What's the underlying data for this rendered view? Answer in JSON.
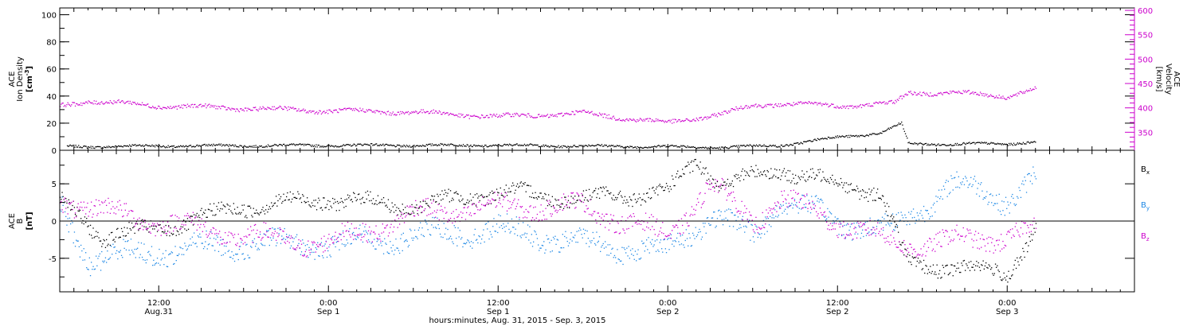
{
  "chart_data": {
    "type": "scatter",
    "time_axis": {
      "range": [
        "2015-08-31T05:00",
        "2015-09-03T09:00"
      ],
      "major_ticks": [
        {
          "t": "2015-08-31T12:00",
          "hour": "12:00",
          "date": "Aug.31"
        },
        {
          "t": "2015-09-01T00:00",
          "hour": "0:00",
          "date": "Sep 1"
        },
        {
          "t": "2015-09-01T12:00",
          "hour": "12:00",
          "date": "Sep 1"
        },
        {
          "t": "2015-09-02T00:00",
          "hour": "0:00",
          "date": "Sep 2"
        },
        {
          "t": "2015-09-02T12:00",
          "hour": "12:00",
          "date": "Sep 2"
        },
        {
          "t": "2015-09-03T00:00",
          "hour": "0:00",
          "date": "Sep 3"
        }
      ],
      "xlabel": "hours:minutes, Aug. 31, 2015 - Sep.  3, 2015"
    },
    "panels": [
      {
        "left_axis": {
          "label_lines": [
            "ACE",
            "Ion Density"
          ],
          "unit_main": "[cm",
          "unit_sup": "-3",
          "unit_end": "]",
          "ylim": [
            0,
            105
          ],
          "ticks": [
            0,
            20,
            40,
            60,
            80,
            100
          ],
          "color": "#000000"
        },
        "right_axis": {
          "label_lines": [
            "ACE",
            "Velocity"
          ],
          "unit": "[km/s]",
          "ylim": [
            313,
            605
          ],
          "ticks": [
            350,
            400,
            450,
            500,
            550,
            600
          ],
          "color": "#cc00cc"
        },
        "series": [
          {
            "key": "density",
            "axis": "left",
            "color": "#000000",
            "noise": 0.8,
            "points": [
              [
                "2015-08-31T05:30",
                3
              ],
              [
                "2015-08-31T12:00",
                3.5
              ],
              [
                "2015-09-01T00:00",
                4
              ],
              [
                "2015-09-01T12:00",
                4
              ],
              [
                "2015-09-02T00:00",
                3
              ],
              [
                "2015-09-02T04:00",
                2.5
              ],
              [
                "2015-09-02T08:00",
                4
              ],
              [
                "2015-09-02T12:00",
                10
              ],
              [
                "2015-09-02T15:00",
                13
              ],
              [
                "2015-09-02T16:30",
                20
              ],
              [
                "2015-09-02T17:00",
                5
              ],
              [
                "2015-09-03T00:00",
                5
              ],
              [
                "2015-09-03T02:00",
                7
              ]
            ]
          },
          {
            "key": "velocity",
            "axis": "right",
            "color": "#cc00cc",
            "noise": 4,
            "points": [
              [
                "2015-08-31T05:00",
                405
              ],
              [
                "2015-08-31T07:00",
                415
              ],
              [
                "2015-08-31T12:00",
                405
              ],
              [
                "2015-08-31T18:00",
                400
              ],
              [
                "2015-09-01T00:00",
                395
              ],
              [
                "2015-09-01T06:00",
                392
              ],
              [
                "2015-09-01T12:00",
                383
              ],
              [
                "2015-09-01T18:00",
                390
              ],
              [
                "2015-09-02T00:00",
                370
              ],
              [
                "2015-09-02T04:00",
                390
              ],
              [
                "2015-09-02T06:00",
                405
              ],
              [
                "2015-09-02T08:00",
                410
              ],
              [
                "2015-09-02T12:00",
                405
              ],
              [
                "2015-09-02T16:00",
                410
              ],
              [
                "2015-09-02T17:00",
                432
              ],
              [
                "2015-09-02T20:00",
                432
              ],
              [
                "2015-09-03T00:00",
                425
              ],
              [
                "2015-09-03T02:00",
                440
              ]
            ]
          }
        ]
      },
      {
        "left_axis": {
          "label_lines": [
            "ACE",
            "B"
          ],
          "unit": "[nT]",
          "ylim": [
            -9.5,
            9.5
          ],
          "ticks": [
            -5,
            0,
            5
          ],
          "color": "#000000"
        },
        "zero_line": true,
        "legend": [
          {
            "main": "B",
            "sub": "x",
            "color": "#000000"
          },
          {
            "main": "B",
            "sub": "y",
            "color": "#1e88e5"
          },
          {
            "main": "B",
            "sub": "z",
            "color": "#cc00cc"
          }
        ],
        "series": [
          {
            "key": "bx",
            "color": "#000000",
            "noise": 0.9,
            "points": [
              [
                "2015-08-31T05:00",
                3
              ],
              [
                "2015-08-31T08:00",
                -2
              ],
              [
                "2015-08-31T12:00",
                -1
              ],
              [
                "2015-08-31T18:00",
                2
              ],
              [
                "2015-09-01T00:00",
                3
              ],
              [
                "2015-09-01T06:00",
                2
              ],
              [
                "2015-09-01T12:00",
                4
              ],
              [
                "2015-09-01T18:00",
                3
              ],
              [
                "2015-09-02T00:00",
                4
              ],
              [
                "2015-09-02T02:00",
                8
              ],
              [
                "2015-09-02T04:00",
                5
              ],
              [
                "2015-09-02T08:00",
                7
              ],
              [
                "2015-09-02T12:00",
                5
              ],
              [
                "2015-09-02T15:00",
                4
              ],
              [
                "2015-09-02T17:00",
                -6
              ],
              [
                "2015-09-02T20:00",
                -6
              ],
              [
                "2015-09-03T00:00",
                -7
              ],
              [
                "2015-09-03T02:00",
                -1
              ]
            ]
          },
          {
            "key": "by",
            "color": "#1e88e5",
            "noise": 1.3,
            "points": [
              [
                "2015-08-31T05:00",
                2
              ],
              [
                "2015-08-31T07:00",
                -5
              ],
              [
                "2015-08-31T12:00",
                -4
              ],
              [
                "2015-08-31T18:00",
                -3
              ],
              [
                "2015-09-01T00:00",
                -3
              ],
              [
                "2015-09-01T06:00",
                -2
              ],
              [
                "2015-09-01T12:00",
                -1
              ],
              [
                "2015-09-01T18:00",
                -3
              ],
              [
                "2015-09-02T00:00",
                -4
              ],
              [
                "2015-09-02T03:00",
                1
              ],
              [
                "2015-09-02T06:00",
                -2
              ],
              [
                "2015-09-02T08:00",
                3
              ],
              [
                "2015-09-02T12:00",
                0
              ],
              [
                "2015-09-02T16:00",
                -1
              ],
              [
                "2015-09-02T20:00",
                5
              ],
              [
                "2015-09-03T00:00",
                3
              ],
              [
                "2015-09-03T02:00",
                6
              ]
            ]
          },
          {
            "key": "bz",
            "color": "#cc00cc",
            "noise": 1.2,
            "points": [
              [
                "2015-08-31T05:00",
                3
              ],
              [
                "2015-08-31T09:00",
                1
              ],
              [
                "2015-08-31T12:00",
                0
              ],
              [
                "2015-08-31T18:00",
                -2
              ],
              [
                "2015-09-01T00:00",
                -3
              ],
              [
                "2015-09-01T06:00",
                1
              ],
              [
                "2015-09-01T12:00",
                2
              ],
              [
                "2015-09-01T18:00",
                2
              ],
              [
                "2015-09-02T00:00",
                -2
              ],
              [
                "2015-09-02T03:00",
                5
              ],
              [
                "2015-09-02T06:00",
                0
              ],
              [
                "2015-09-02T08:00",
                3
              ],
              [
                "2015-09-02T12:00",
                0
              ],
              [
                "2015-09-02T16:00",
                -3
              ],
              [
                "2015-09-02T18:00",
                -3
              ],
              [
                "2015-09-03T00:00",
                -2
              ],
              [
                "2015-09-03T02:00",
                -1
              ]
            ]
          }
        ]
      }
    ]
  }
}
